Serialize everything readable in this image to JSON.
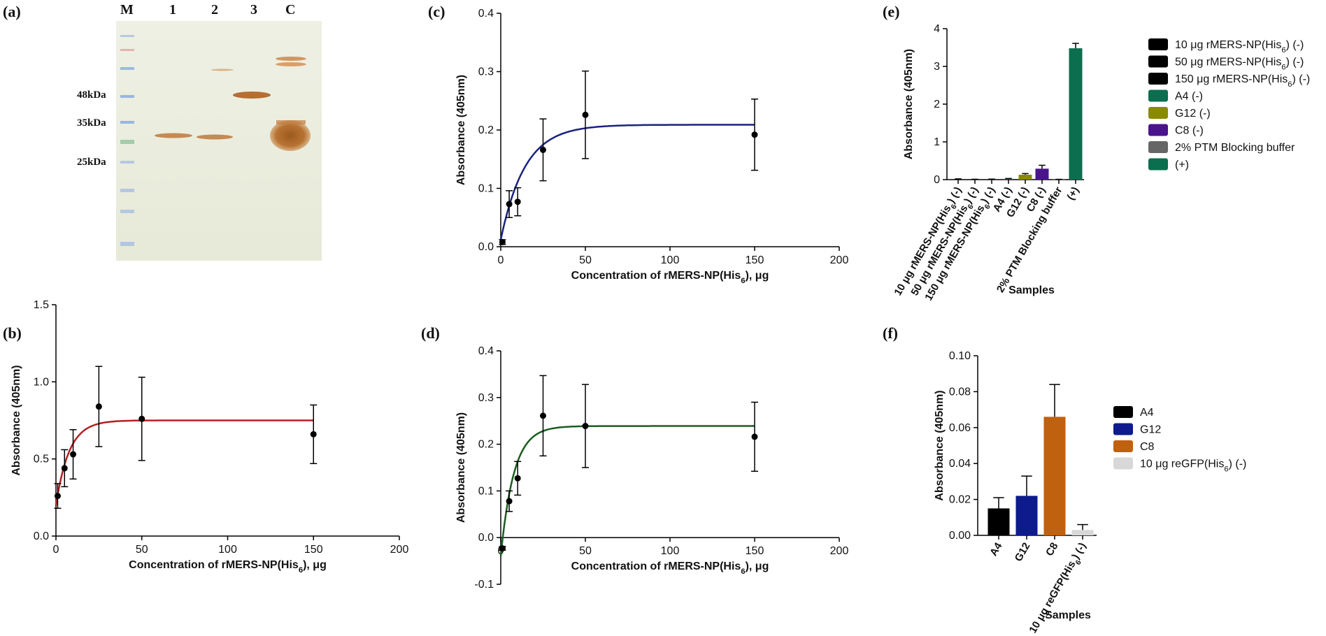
{
  "panel_labels": {
    "a": "(a)",
    "b": "(b)",
    "c": "(c)",
    "d": "(d)",
    "e": "(e)",
    "f": "(f)"
  },
  "gel": {
    "lanes": [
      "M",
      "1",
      "2",
      "3",
      "C"
    ],
    "markers": [
      "48kDa",
      "35kDa",
      "25kDa"
    ]
  },
  "chart_data": [
    {
      "id": "b",
      "type": "scatter",
      "color": "#b22222",
      "x": [
        1,
        5,
        10,
        25,
        50,
        150
      ],
      "y": [
        0.26,
        0.44,
        0.53,
        0.84,
        0.76,
        0.66
      ],
      "err": [
        0.08,
        0.12,
        0.16,
        0.26,
        0.27,
        0.19
      ],
      "fit": {
        "plateau": 0.75,
        "y0": 0.2,
        "k": 0.13
      },
      "xlim": [
        0,
        200
      ],
      "ylim": [
        0,
        1.5
      ],
      "xticks": [
        "0",
        "50",
        "100",
        "150",
        "200"
      ],
      "yticks": [
        "0.0",
        "0.5",
        "1.0",
        "1.5"
      ],
      "ytick_values": [
        0,
        0.5,
        1.0,
        1.5
      ],
      "xlabel": "Concentration of rMERS-NP(His6), μg",
      "ylabel": "Absorbance (405nm)"
    },
    {
      "id": "c",
      "type": "scatter",
      "color": "#1a237e",
      "x": [
        1,
        5,
        10,
        25,
        50,
        150
      ],
      "y": [
        0.008,
        0.073,
        0.077,
        0.166,
        0.226,
        0.192
      ],
      "err": [
        0.004,
        0.023,
        0.024,
        0.053,
        0.075,
        0.061
      ],
      "fit": {
        "plateau": 0.209,
        "y0": 0.012,
        "k": 0.07
      },
      "xlim": [
        0,
        200
      ],
      "ylim": [
        0,
        0.4
      ],
      "xticks": [
        "0",
        "50",
        "100",
        "150",
        "200"
      ],
      "yticks": [
        "0.0",
        "0.1",
        "0.2",
        "0.3",
        "0.4"
      ],
      "ytick_values": [
        0,
        0.1,
        0.2,
        0.3,
        0.4
      ],
      "xlabel": "Concentration of rMERS-NP(His6), μg",
      "ylabel": "Absorbance (405nm)"
    },
    {
      "id": "d",
      "type": "scatter",
      "color": "#1b5e20",
      "x": [
        1,
        5,
        10,
        25,
        50,
        150
      ],
      "y": [
        -0.023,
        0.078,
        0.127,
        0.261,
        0.239,
        0.216
      ],
      "err": [
        0.004,
        0.022,
        0.036,
        0.086,
        0.089,
        0.074
      ],
      "fit": {
        "plateau": 0.239,
        "y0": -0.04,
        "k": 0.13
      },
      "xlim": [
        0,
        200
      ],
      "ylim": [
        -0.1,
        0.4
      ],
      "xticks": [
        "0",
        "50",
        "100",
        "150",
        "200"
      ],
      "yticks": [
        "-0.1",
        "0.0",
        "0.1",
        "0.2",
        "0.3",
        "0.4"
      ],
      "ytick_values": [
        -0.1,
        0,
        0.1,
        0.2,
        0.3,
        0.4
      ],
      "xlabel": "Concentration of rMERS-NP(His6), μg",
      "ylabel": "Absorbance (405nm)"
    },
    {
      "id": "e",
      "type": "bar",
      "categories": [
        "10 μg rMERS-NP(His6) (-)",
        "50 μg rMERS-NP(His6) (-)",
        "150 μg rMERS-NP(His6) (-)",
        "A4 (-)",
        "G12 (-)",
        "C8 (-)",
        "2% PTM Blocking buffer",
        "(+)"
      ],
      "values": [
        0.01,
        0.005,
        0.008,
        0.02,
        0.13,
        0.29,
        0.005,
        3.48
      ],
      "errors": [
        0.01,
        0.005,
        0.006,
        0.01,
        0.03,
        0.09,
        0.003,
        0.13
      ],
      "colors": [
        "#000000",
        "#000000",
        "#000000",
        "#0b6e4f",
        "#8a8a00",
        "#4a148c",
        "#666666",
        "#0b6e4f"
      ],
      "ylim": [
        0,
        4
      ],
      "yticks": [
        "0",
        "1",
        "2",
        "3",
        "4"
      ],
      "ytick_values": [
        0,
        1,
        2,
        3,
        4
      ],
      "xlabel": "Samples",
      "ylabel": "Absorbance (405nm)",
      "legend": [
        "10 μg rMERS-NP(His6) (-)",
        "50 μg rMERS-NP(His6) (-)",
        "150 μg rMERS-NP(His6) (-)",
        "A4 (-)",
        "G12 (-)",
        "C8 (-)",
        "2% PTM Blocking buffer",
        "(+)"
      ]
    },
    {
      "id": "f",
      "type": "bar",
      "categories": [
        "A4",
        "G12",
        "C8",
        "10 μg reGFP(His6) (-)"
      ],
      "values": [
        0.015,
        0.022,
        0.066,
        0.003
      ],
      "errors": [
        0.006,
        0.011,
        0.018,
        0.003
      ],
      "colors": [
        "#000000",
        "#0d1b8c",
        "#c0610f",
        "#d8d8d8"
      ],
      "ylim": [
        0,
        0.1
      ],
      "yticks": [
        "0.00",
        "0.02",
        "0.04",
        "0.06",
        "0.08",
        "0.10"
      ],
      "ytick_values": [
        0,
        0.02,
        0.04,
        0.06,
        0.08,
        0.1
      ],
      "xlabel": "Samples",
      "ylabel": "Absorbance (405nm)",
      "legend": [
        "A4",
        "G12",
        "C8",
        "10 μg reGFP(His6) (-)"
      ]
    }
  ]
}
